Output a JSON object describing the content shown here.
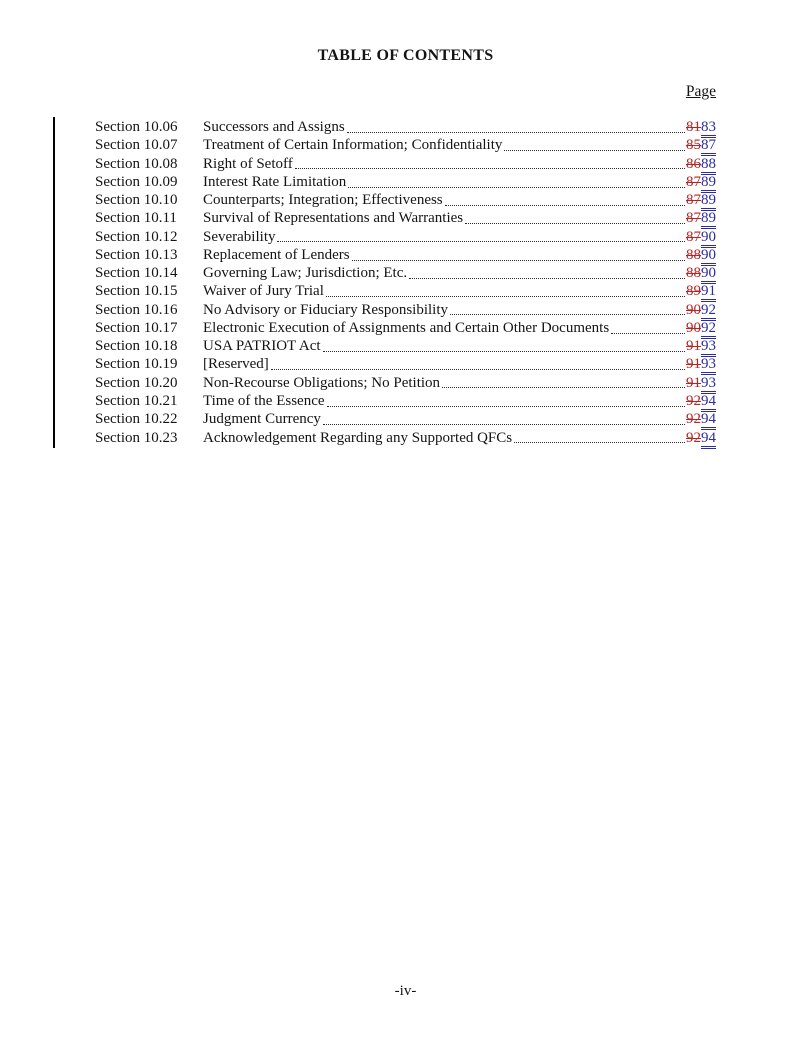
{
  "colors": {
    "ink": "#141414",
    "deleted": "#b52524",
    "inserted": "#2c2ba4"
  },
  "document": {
    "title": "TABLE OF CONTENTS",
    "page_column_label": "Page",
    "footer_page_number": "-iv-"
  },
  "toc": {
    "entries": [
      {
        "section": "Section 10.06",
        "title": "Successors and Assigns",
        "old_page": "81",
        "new_page": "83"
      },
      {
        "section": "Section 10.07",
        "title": "Treatment of Certain Information; Confidentiality",
        "old_page": "85",
        "new_page": "87"
      },
      {
        "section": "Section 10.08",
        "title": "Right of Setoff",
        "old_page": "86",
        "new_page": "88"
      },
      {
        "section": "Section 10.09",
        "title": "Interest Rate Limitation",
        "old_page": "87",
        "new_page": "89"
      },
      {
        "section": "Section 10.10",
        "title": "Counterparts; Integration; Effectiveness",
        "old_page": "87",
        "new_page": "89"
      },
      {
        "section": "Section 10.11",
        "title": "Survival of Representations and Warranties",
        "old_page": "87",
        "new_page": "89"
      },
      {
        "section": "Section 10.12",
        "title": "Severability",
        "old_page": "87",
        "new_page": "90"
      },
      {
        "section": "Section 10.13",
        "title": "Replacement of Lenders",
        "old_page": "88",
        "new_page": "90"
      },
      {
        "section": "Section 10.14",
        "title": "Governing Law; Jurisdiction; Etc.",
        "old_page": "88",
        "new_page": "90"
      },
      {
        "section": "Section 10.15",
        "title": "Waiver of Jury Trial",
        "old_page": "89",
        "new_page": "91"
      },
      {
        "section": "Section 10.16",
        "title": "No Advisory or Fiduciary Responsibility",
        "old_page": "90",
        "new_page": "92"
      },
      {
        "section": "Section 10.17",
        "title": "Electronic Execution of Assignments and Certain Other Documents",
        "old_page": "90",
        "new_page": "92"
      },
      {
        "section": "Section 10.18",
        "title": "USA PATRIOT Act",
        "old_page": "91",
        "new_page": "93"
      },
      {
        "section": "Section 10.19",
        "title": "[Reserved]",
        "old_page": "91",
        "new_page": "93"
      },
      {
        "section": "Section 10.20",
        "title": "Non-Recourse Obligations; No Petition",
        "old_page": "91",
        "new_page": "93"
      },
      {
        "section": "Section 10.21",
        "title": "Time of the Essence",
        "old_page": "92",
        "new_page": "94"
      },
      {
        "section": "Section 10.22",
        "title": "Judgment Currency",
        "old_page": "92",
        "new_page": "94"
      },
      {
        "section": "Section 10.23",
        "title": "Acknowledgement Regarding any Supported QFCs",
        "old_page": "92",
        "new_page": "94"
      }
    ]
  }
}
